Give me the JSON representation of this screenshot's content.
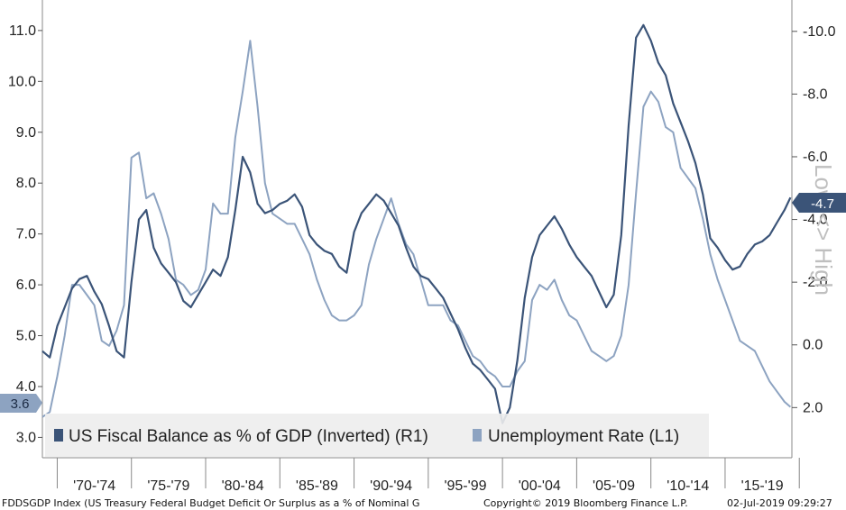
{
  "chart_data": {
    "type": "line",
    "title": "",
    "left_axis": {
      "min": 2.6,
      "max": 11.6,
      "ticks": [
        "3.0",
        "4.0",
        "5.0",
        "6.0",
        "7.0",
        "8.0",
        "9.0",
        "10.0",
        "11.0"
      ],
      "tick_values": [
        3,
        4,
        5,
        6,
        7,
        8,
        9,
        10,
        11
      ]
    },
    "right_axis": {
      "inverted": true,
      "min": -11.0,
      "max": 3.6,
      "ticks": [
        "-10.0",
        "-8.0",
        "-6.0",
        "-4.0",
        "-2.0",
        "0.0",
        "2.0"
      ],
      "tick_values": [
        -10,
        -8,
        -6,
        -4,
        -2,
        0,
        2
      ],
      "side_label": "Low <> High"
    },
    "x_periods": [
      "'70-'74",
      "'75-'79",
      "'80-'84",
      "'85-'89",
      "'90-'94",
      "'95-'99",
      "'00-'04",
      "'05-'09",
      "'10-'14",
      "'15-'19"
    ],
    "x_range": [
      1969.0,
      2019.5
    ],
    "series": [
      {
        "name": "US Fiscal Balance as % of GDP (Inverted) (R1)",
        "axis": "right",
        "color": "#3b5478",
        "last_value_label": "-4.7",
        "x": [
          1969.0,
          1969.5,
          1970.0,
          1970.5,
          1971.0,
          1971.5,
          1972.0,
          1972.5,
          1973.0,
          1973.5,
          1974.0,
          1974.5,
          1975.0,
          1975.5,
          1976.0,
          1976.5,
          1977.0,
          1977.5,
          1978.0,
          1978.5,
          1979.0,
          1979.5,
          1980.0,
          1980.5,
          1981.0,
          1981.5,
          1982.0,
          1982.5,
          1983.0,
          1983.5,
          1984.0,
          1984.5,
          1985.0,
          1985.5,
          1986.0,
          1986.5,
          1987.0,
          1987.5,
          1988.0,
          1988.5,
          1989.0,
          1989.5,
          1990.0,
          1990.5,
          1991.0,
          1991.5,
          1992.0,
          1992.5,
          1993.0,
          1993.5,
          1994.0,
          1994.5,
          1995.0,
          1995.5,
          1996.0,
          1996.5,
          1997.0,
          1997.5,
          1998.0,
          1998.5,
          1999.0,
          1999.5,
          2000.0,
          2000.5,
          2001.0,
          2001.5,
          2002.0,
          2002.5,
          2003.0,
          2003.5,
          2004.0,
          2004.5,
          2005.0,
          2005.5,
          2006.0,
          2006.5,
          2007.0,
          2007.5,
          2008.0,
          2008.5,
          2009.0,
          2009.5,
          2010.0,
          2010.5,
          2011.0,
          2011.5,
          2012.0,
          2012.5,
          2013.0,
          2013.5,
          2014.0,
          2014.5,
          2015.0,
          2015.5,
          2016.0,
          2016.5,
          2017.0,
          2017.5,
          2018.0,
          2018.5,
          2019.0,
          2019.4
        ],
        "values": [
          0.2,
          0.4,
          -0.6,
          -1.2,
          -1.8,
          -2.1,
          -2.2,
          -1.7,
          -1.3,
          -0.6,
          0.2,
          0.4,
          -2.0,
          -4.0,
          -4.3,
          -3.1,
          -2.6,
          -2.3,
          -2.0,
          -1.4,
          -1.2,
          -1.6,
          -2.0,
          -2.4,
          -2.2,
          -2.8,
          -4.3,
          -6.0,
          -5.5,
          -4.5,
          -4.2,
          -4.3,
          -4.5,
          -4.6,
          -4.8,
          -4.4,
          -3.5,
          -3.2,
          -3.0,
          -2.9,
          -2.5,
          -2.3,
          -3.6,
          -4.2,
          -4.5,
          -4.8,
          -4.6,
          -4.2,
          -3.8,
          -3.1,
          -2.5,
          -2.2,
          -2.1,
          -1.8,
          -1.5,
          -1.0,
          -0.5,
          0.1,
          0.6,
          0.8,
          1.1,
          1.4,
          2.5,
          2.0,
          0.5,
          -1.5,
          -2.8,
          -3.5,
          -3.8,
          -4.1,
          -3.7,
          -3.2,
          -2.8,
          -2.5,
          -2.2,
          -1.7,
          -1.2,
          -1.6,
          -3.5,
          -7.0,
          -9.8,
          -10.2,
          -9.7,
          -9.0,
          -8.6,
          -7.7,
          -7.1,
          -6.5,
          -5.8,
          -4.8,
          -3.4,
          -3.1,
          -2.7,
          -2.4,
          -2.5,
          -2.9,
          -3.2,
          -3.3,
          -3.5,
          -3.9,
          -4.3,
          -4.7
        ]
      },
      {
        "name": "Unemployment Rate (L1)",
        "axis": "left",
        "color": "#8da3c1",
        "last_value_label": "3.6",
        "x": [
          1969.0,
          1969.5,
          1970.0,
          1970.5,
          1971.0,
          1971.5,
          1972.0,
          1972.5,
          1973.0,
          1973.5,
          1974.0,
          1974.5,
          1975.0,
          1975.5,
          1976.0,
          1976.5,
          1977.0,
          1977.5,
          1978.0,
          1978.5,
          1979.0,
          1979.5,
          1980.0,
          1980.5,
          1981.0,
          1981.5,
          1982.0,
          1982.5,
          1983.0,
          1983.5,
          1984.0,
          1984.5,
          1985.0,
          1985.5,
          1986.0,
          1986.5,
          1987.0,
          1987.5,
          1988.0,
          1988.5,
          1989.0,
          1989.5,
          1990.0,
          1990.5,
          1991.0,
          1991.5,
          1992.0,
          1992.5,
          1993.0,
          1993.5,
          1994.0,
          1994.5,
          1995.0,
          1995.5,
          1996.0,
          1996.5,
          1997.0,
          1997.5,
          1998.0,
          1998.5,
          1999.0,
          1999.5,
          2000.0,
          2000.5,
          2001.0,
          2001.5,
          2002.0,
          2002.5,
          2003.0,
          2003.5,
          2004.0,
          2004.5,
          2005.0,
          2005.5,
          2006.0,
          2006.5,
          2007.0,
          2007.5,
          2008.0,
          2008.5,
          2009.0,
          2009.5,
          2010.0,
          2010.5,
          2011.0,
          2011.5,
          2012.0,
          2012.5,
          2013.0,
          2013.5,
          2014.0,
          2014.5,
          2015.0,
          2015.5,
          2016.0,
          2016.5,
          2017.0,
          2017.5,
          2018.0,
          2018.5,
          2019.0,
          2019.4
        ],
        "values": [
          3.4,
          3.5,
          4.2,
          5.0,
          6.0,
          6.0,
          5.8,
          5.6,
          4.9,
          4.8,
          5.1,
          5.6,
          8.5,
          8.6,
          7.7,
          7.8,
          7.4,
          6.9,
          6.1,
          6.0,
          5.8,
          5.9,
          6.3,
          7.6,
          7.4,
          7.4,
          8.9,
          9.8,
          10.8,
          9.5,
          8.0,
          7.4,
          7.3,
          7.2,
          7.2,
          6.9,
          6.6,
          6.1,
          5.7,
          5.4,
          5.3,
          5.3,
          5.4,
          5.6,
          6.4,
          6.9,
          7.3,
          7.7,
          7.2,
          6.8,
          6.6,
          6.1,
          5.6,
          5.6,
          5.6,
          5.3,
          5.2,
          4.9,
          4.6,
          4.5,
          4.3,
          4.2,
          4.0,
          4.0,
          4.3,
          4.5,
          5.7,
          6.0,
          5.9,
          6.1,
          5.7,
          5.4,
          5.3,
          5.0,
          4.7,
          4.6,
          4.5,
          4.6,
          5.0,
          6.0,
          7.8,
          9.5,
          9.8,
          9.6,
          9.1,
          9.0,
          8.3,
          8.1,
          7.9,
          7.3,
          6.6,
          6.1,
          5.7,
          5.3,
          4.9,
          4.8,
          4.7,
          4.4,
          4.1,
          3.9,
          3.7,
          3.6
        ]
      }
    ],
    "legend": {
      "placement": "bottom-left"
    },
    "grid": false
  },
  "footer": {
    "source": "FDDSGDP Index (US Treasury Federal Budget Deficit Or Surplus as a % of Nominal G",
    "copyright": "Copyright© 2019 Bloomberg Finance L.P.",
    "timestamp": "02-Jul-2019 09:29:27"
  }
}
